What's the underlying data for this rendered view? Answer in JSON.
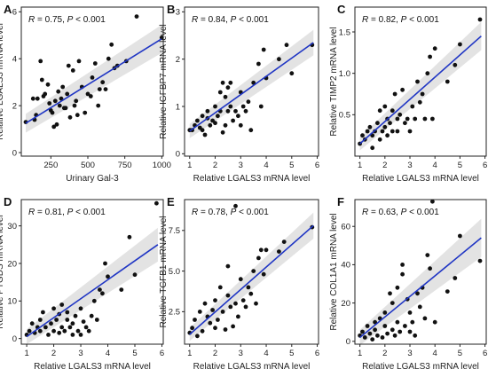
{
  "style": {
    "point_color": "#111111",
    "line_color": "#1f35c4",
    "band_color": "#d9d9d9"
  },
  "chart_data": [
    {
      "panel": "A",
      "type": "scatter",
      "xlabel": "Urinary Gal-3",
      "ylabel": "Relative LGALS3 mRNA level",
      "stat": {
        "r_prefix": "R",
        "r_value": " = 0.75, ",
        "p_prefix": "P",
        "p_value": " < 0.001"
      },
      "xlim": [
        50,
        1010
      ],
      "ylim": [
        -0.15,
        6.2
      ],
      "xticks": [
        250,
        500,
        750,
        1000
      ],
      "yticks": [
        0,
        2,
        4,
        6
      ],
      "fit": {
        "x": [
          80,
          1000
        ],
        "y": [
          1.25,
          4.85
        ],
        "band_low": [
          0.85,
          4.25
        ],
        "band_high": [
          1.65,
          5.45
        ]
      },
      "points": [
        [
          80,
          1.3
        ],
        [
          130,
          2.3
        ],
        [
          140,
          1.4
        ],
        [
          150,
          1.6
        ],
        [
          160,
          2.3
        ],
        [
          180,
          3.9
        ],
        [
          190,
          3.1
        ],
        [
          200,
          2.4
        ],
        [
          210,
          2.5
        ],
        [
          230,
          2.9
        ],
        [
          240,
          2.1
        ],
        [
          250,
          1.8
        ],
        [
          260,
          1.7
        ],
        [
          270,
          1.1
        ],
        [
          280,
          2.2
        ],
        [
          290,
          1.2
        ],
        [
          300,
          2.6
        ],
        [
          310,
          2.0
        ],
        [
          320,
          2.3
        ],
        [
          330,
          2.8
        ],
        [
          340,
          1.9
        ],
        [
          350,
          1.9
        ],
        [
          360,
          2.5
        ],
        [
          370,
          3.7
        ],
        [
          380,
          1.5
        ],
        [
          400,
          3.5
        ],
        [
          410,
          2.0
        ],
        [
          420,
          2.2
        ],
        [
          430,
          1.6
        ],
        [
          440,
          3.9
        ],
        [
          460,
          2.8
        ],
        [
          480,
          1.7
        ],
        [
          500,
          2.5
        ],
        [
          520,
          2.4
        ],
        [
          530,
          3.2
        ],
        [
          550,
          3.8
        ],
        [
          570,
          2.0
        ],
        [
          580,
          2.7
        ],
        [
          600,
          3.0
        ],
        [
          620,
          2.7
        ],
        [
          640,
          4.0
        ],
        [
          660,
          4.6
        ],
        [
          680,
          3.6
        ],
        [
          700,
          3.7
        ],
        [
          760,
          3.9
        ],
        [
          830,
          5.8
        ],
        [
          1000,
          4.9
        ]
      ]
    },
    {
      "panel": "B",
      "type": "scatter",
      "xlabel": "Relative LGALS3 mRNA level",
      "ylabel": "Relative IGFBP7 mRNA level",
      "stat": {
        "r_prefix": "R",
        "r_value": " = 0.84, ",
        "p_prefix": "P",
        "p_value": " < 0.001"
      },
      "xlim": [
        0.8,
        6.05
      ],
      "ylim": [
        -0.05,
        3.1
      ],
      "xticks": [
        1,
        2,
        3,
        4,
        5,
        6
      ],
      "yticks": [
        0,
        1,
        2,
        3
      ],
      "fit": {
        "x": [
          1.0,
          5.85
        ],
        "y": [
          0.48,
          2.35
        ],
        "band_low": [
          0.33,
          2.08
        ],
        "band_high": [
          0.63,
          2.62
        ]
      },
      "points": [
        [
          1.0,
          0.5
        ],
        [
          1.1,
          0.5
        ],
        [
          1.2,
          0.6
        ],
        [
          1.3,
          0.7
        ],
        [
          1.4,
          0.55
        ],
        [
          1.5,
          0.5
        ],
        [
          1.5,
          0.8
        ],
        [
          1.6,
          0.4
        ],
        [
          1.7,
          0.75
        ],
        [
          1.7,
          0.9
        ],
        [
          1.8,
          0.6
        ],
        [
          1.9,
          0.7
        ],
        [
          2.0,
          0.65
        ],
        [
          2.0,
          1.0
        ],
        [
          2.1,
          0.8
        ],
        [
          2.2,
          1.3
        ],
        [
          2.2,
          0.9
        ],
        [
          2.3,
          1.5
        ],
        [
          2.3,
          0.45
        ],
        [
          2.4,
          1.2
        ],
        [
          2.4,
          0.6
        ],
        [
          2.5,
          1.4
        ],
        [
          2.5,
          0.9
        ],
        [
          2.6,
          1.5
        ],
        [
          2.6,
          1.0
        ],
        [
          2.7,
          0.7
        ],
        [
          2.8,
          0.9
        ],
        [
          2.9,
          0.8
        ],
        [
          3.0,
          1.3
        ],
        [
          3.0,
          0.6
        ],
        [
          3.1,
          1.0
        ],
        [
          3.2,
          0.9
        ],
        [
          3.3,
          1.1
        ],
        [
          3.4,
          0.5
        ],
        [
          3.5,
          1.5
        ],
        [
          3.7,
          1.9
        ],
        [
          3.8,
          1.0
        ],
        [
          3.9,
          2.2
        ],
        [
          4.0,
          1.6
        ],
        [
          4.5,
          2.0
        ],
        [
          4.8,
          2.3
        ],
        [
          5.0,
          1.7
        ],
        [
          5.8,
          2.3
        ]
      ]
    },
    {
      "panel": "C",
      "type": "scatter",
      "xlabel": "Relative LGALS3 mRNA level",
      "ylabel": "Relative TIMP2 mRNA level",
      "stat": {
        "r_prefix": "R",
        "r_value": " = 0.82, ",
        "p_prefix": "P",
        "p_value": " < 0.001"
      },
      "xlim": [
        0.8,
        6.05
      ],
      "ylim": [
        0.0,
        1.8
      ],
      "xticks": [
        1,
        2,
        3,
        4,
        5,
        6
      ],
      "yticks": [
        0.5,
        1.0,
        1.5
      ],
      "fit": {
        "x": [
          1.0,
          5.85
        ],
        "y": [
          0.15,
          1.45
        ],
        "band_low": [
          0.07,
          1.28
        ],
        "band_high": [
          0.23,
          1.62
        ]
      },
      "points": [
        [
          1.0,
          0.15
        ],
        [
          1.1,
          0.25
        ],
        [
          1.2,
          0.2
        ],
        [
          1.3,
          0.3
        ],
        [
          1.4,
          0.35
        ],
        [
          1.5,
          0.1
        ],
        [
          1.5,
          0.25
        ],
        [
          1.6,
          0.3
        ],
        [
          1.7,
          0.4
        ],
        [
          1.8,
          0.2
        ],
        [
          1.8,
          0.55
        ],
        [
          1.9,
          0.3
        ],
        [
          2.0,
          0.35
        ],
        [
          2.0,
          0.6
        ],
        [
          2.1,
          0.25
        ],
        [
          2.1,
          0.45
        ],
        [
          2.2,
          0.4
        ],
        [
          2.3,
          0.55
        ],
        [
          2.3,
          0.3
        ],
        [
          2.4,
          0.75
        ],
        [
          2.5,
          0.45
        ],
        [
          2.5,
          0.3
        ],
        [
          2.6,
          0.5
        ],
        [
          2.7,
          0.8
        ],
        [
          2.8,
          0.4
        ],
        [
          2.9,
          0.45
        ],
        [
          3.0,
          0.3
        ],
        [
          3.1,
          0.6
        ],
        [
          3.2,
          0.45
        ],
        [
          3.3,
          0.9
        ],
        [
          3.4,
          0.65
        ],
        [
          3.5,
          0.75
        ],
        [
          3.6,
          0.45
        ],
        [
          3.7,
          1.0
        ],
        [
          3.8,
          1.2
        ],
        [
          3.9,
          0.45
        ],
        [
          4.0,
          1.3
        ],
        [
          4.5,
          0.9
        ],
        [
          4.8,
          1.1
        ],
        [
          5.0,
          1.35
        ],
        [
          5.8,
          1.65
        ]
      ]
    },
    {
      "panel": "D",
      "type": "scatter",
      "xlabel": "Relative LGALS3 mRNA level",
      "ylabel": "Relative PTGDS mRNA level",
      "stat": {
        "r_prefix": "R",
        "r_value": " = 0.81, ",
        "p_prefix": "P",
        "p_value": " < 0.001"
      },
      "xlim": [
        0.8,
        6.05
      ],
      "ylim": [
        -1.5,
        37
      ],
      "xticks": [
        1,
        2,
        3,
        4,
        5,
        6
      ],
      "yticks": [
        0,
        10,
        20,
        30
      ],
      "fit": {
        "x": [
          1.0,
          5.85
        ],
        "y": [
          0.5,
          25.0
        ],
        "band_low": [
          -1.5,
          20.5
        ],
        "band_high": [
          2.5,
          29.5
        ]
      },
      "points": [
        [
          1.0,
          1.0
        ],
        [
          1.1,
          2.0
        ],
        [
          1.2,
          4.0
        ],
        [
          1.3,
          1.5
        ],
        [
          1.4,
          3.0
        ],
        [
          1.5,
          5.0
        ],
        [
          1.5,
          2.0
        ],
        [
          1.6,
          7.0
        ],
        [
          1.7,
          3.0
        ],
        [
          1.8,
          1.0
        ],
        [
          1.9,
          4.0
        ],
        [
          2.0,
          2.0
        ],
        [
          2.0,
          8.0
        ],
        [
          2.1,
          5.0
        ],
        [
          2.2,
          1.5
        ],
        [
          2.2,
          6.5
        ],
        [
          2.3,
          3.0
        ],
        [
          2.3,
          9.0
        ],
        [
          2.4,
          2.0
        ],
        [
          2.5,
          5.0
        ],
        [
          2.5,
          7.0
        ],
        [
          2.6,
          3.0
        ],
        [
          2.7,
          1.0
        ],
        [
          2.7,
          4.0
        ],
        [
          2.8,
          6.0
        ],
        [
          2.9,
          2.0
        ],
        [
          3.0,
          1.0
        ],
        [
          3.0,
          8.0
        ],
        [
          3.1,
          4.5
        ],
        [
          3.2,
          3.0
        ],
        [
          3.3,
          2.0
        ],
        [
          3.4,
          6.0
        ],
        [
          3.5,
          10.0
        ],
        [
          3.6,
          5.0
        ],
        [
          3.7,
          13.0
        ],
        [
          3.8,
          12.0
        ],
        [
          3.9,
          20.0
        ],
        [
          4.0,
          16.5
        ],
        [
          4.5,
          13.0
        ],
        [
          4.8,
          27.0
        ],
        [
          5.0,
          17.0
        ],
        [
          5.8,
          36.0
        ]
      ]
    },
    {
      "panel": "E",
      "type": "scatter",
      "xlabel": "Relative LGALS3 mRNA level",
      "ylabel": "Relative TGFB1 mRNA level",
      "stat": {
        "r_prefix": "R",
        "r_value": " = 0.78, ",
        "p_prefix": "P",
        "p_value": " < 0.001"
      },
      "xlim": [
        0.8,
        6.05
      ],
      "ylim": [
        0.5,
        9.4
      ],
      "xticks": [
        1,
        2,
        3,
        4,
        5,
        6
      ],
      "yticks": [
        2.5,
        5.0,
        7.5
      ],
      "fit": {
        "x": [
          1.0,
          5.85
        ],
        "y": [
          1.1,
          7.8
        ],
        "band_low": [
          0.7,
          7.0
        ],
        "band_high": [
          1.5,
          8.6
        ]
      },
      "points": [
        [
          1.0,
          1.2
        ],
        [
          1.1,
          1.5
        ],
        [
          1.2,
          2.0
        ],
        [
          1.3,
          1.0
        ],
        [
          1.4,
          2.5
        ],
        [
          1.5,
          1.3
        ],
        [
          1.6,
          3.0
        ],
        [
          1.7,
          2.2
        ],
        [
          1.8,
          1.8
        ],
        [
          1.9,
          2.6
        ],
        [
          2.0,
          1.5
        ],
        [
          2.0,
          3.2
        ],
        [
          2.1,
          2.0
        ],
        [
          2.2,
          4.0
        ],
        [
          2.3,
          2.5
        ],
        [
          2.4,
          1.4
        ],
        [
          2.5,
          3.5
        ],
        [
          2.5,
          5.3
        ],
        [
          2.6,
          2.8
        ],
        [
          2.7,
          1.6
        ],
        [
          2.8,
          9.0
        ],
        [
          2.8,
          3.0
        ],
        [
          2.9,
          2.2
        ],
        [
          3.0,
          4.5
        ],
        [
          3.1,
          3.2
        ],
        [
          3.2,
          2.8
        ],
        [
          3.3,
          4.0
        ],
        [
          3.4,
          3.6
        ],
        [
          3.5,
          5.0
        ],
        [
          3.6,
          3.0
        ],
        [
          3.7,
          5.8
        ],
        [
          3.8,
          6.3
        ],
        [
          3.9,
          4.8
        ],
        [
          4.0,
          6.3
        ],
        [
          4.5,
          6.2
        ],
        [
          4.7,
          6.8
        ],
        [
          5.8,
          7.7
        ]
      ]
    },
    {
      "panel": "F",
      "type": "scatter",
      "xlabel": "Relative LGALS3 mRNA level",
      "ylabel": "Relative COL1A1 mRNA level",
      "stat": {
        "r_prefix": "R",
        "r_value": " = 0.63, ",
        "p_prefix": "P",
        "p_value": " < 0.001"
      },
      "xlim": [
        0.8,
        6.05
      ],
      "ylim": [
        -1.5,
        74
      ],
      "xticks": [
        1,
        2,
        3,
        4,
        5,
        6
      ],
      "yticks": [
        0,
        20,
        40,
        60
      ],
      "fit": {
        "x": [
          1.0,
          5.85
        ],
        "y": [
          2.0,
          54.0
        ],
        "band_low": [
          -2.0,
          44.0
        ],
        "band_high": [
          6.0,
          64.0
        ]
      },
      "points": [
        [
          1.0,
          3.0
        ],
        [
          1.1,
          5.0
        ],
        [
          1.2,
          2.0
        ],
        [
          1.3,
          8.0
        ],
        [
          1.4,
          4.0
        ],
        [
          1.5,
          1.0
        ],
        [
          1.6,
          6.0
        ],
        [
          1.6,
          10.0
        ],
        [
          1.7,
          3.0
        ],
        [
          1.8,
          12.0
        ],
        [
          1.9,
          2.0
        ],
        [
          2.0,
          8.0
        ],
        [
          2.0,
          15.0
        ],
        [
          2.1,
          4.0
        ],
        [
          2.2,
          25.0
        ],
        [
          2.3,
          6.0
        ],
        [
          2.3,
          20.0
        ],
        [
          2.4,
          3.0
        ],
        [
          2.5,
          28.0
        ],
        [
          2.5,
          10.0
        ],
        [
          2.6,
          5.0
        ],
        [
          2.7,
          35.0
        ],
        [
          2.7,
          40.0
        ],
        [
          2.8,
          8.0
        ],
        [
          2.9,
          22.0
        ],
        [
          3.0,
          5.0
        ],
        [
          3.0,
          15.0
        ],
        [
          3.1,
          10.0
        ],
        [
          3.2,
          3.0
        ],
        [
          3.3,
          25.0
        ],
        [
          3.4,
          18.0
        ],
        [
          3.5,
          28.0
        ],
        [
          3.6,
          12.0
        ],
        [
          3.7,
          45.0
        ],
        [
          3.8,
          38.0
        ],
        [
          3.9,
          73.0
        ],
        [
          4.0,
          10.0
        ],
        [
          4.5,
          26.0
        ],
        [
          4.8,
          33.0
        ],
        [
          5.0,
          55.0
        ],
        [
          5.8,
          42.0
        ]
      ]
    }
  ]
}
